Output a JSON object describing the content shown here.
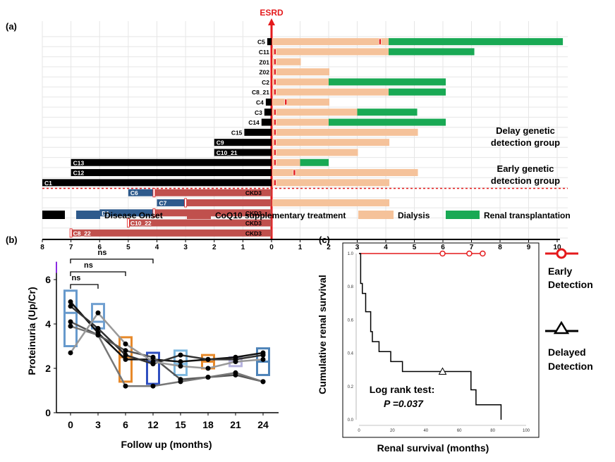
{
  "colors": {
    "onset": "#000000",
    "disease_onset": "#2e5a8c",
    "coq10": "#c0504d",
    "dialysis": "#f5c29a",
    "transplant": "#19a954",
    "esrd": "#e41a1c",
    "boxes": [
      "#6699cc",
      "#6f9fd0",
      "#e7892a",
      "#2f4fc0",
      "#7fb9e0",
      "#e7892a",
      "#b7b4e0",
      "#4d83b8"
    ],
    "early_curve": "#e41a1c",
    "delayed_curve": "#000000"
  },
  "panel_labels": {
    "a": "(a)",
    "b": "(b)",
    "c": "(c)"
  },
  "chart_data": [
    {
      "type": "bar",
      "subtype": "swimmer-plot",
      "panel": "(a)",
      "reference_line": {
        "label": "ESRD",
        "x": 0
      },
      "x_ticks_left": [
        "8",
        "7",
        "6",
        "5",
        "4",
        "3",
        "2",
        "1",
        "0"
      ],
      "x_ticks_right": [
        "1",
        "2",
        "3",
        "4",
        "5",
        "6",
        "7",
        "8",
        "9",
        "10"
      ],
      "group_labels": [
        {
          "lines": [
            "Delay genetic",
            "detection group"
          ]
        },
        {
          "lines": [
            "Early genetic",
            "detection group"
          ]
        }
      ],
      "legend": [
        {
          "key": "onset",
          "label": ""
        },
        {
          "key": "disease_onset",
          "label": "Disease Onset"
        },
        {
          "key": "coq10",
          "label": "CoQ10 supplementary treatment"
        },
        {
          "key": "dialysis",
          "label": "Dialysis"
        },
        {
          "key": "transplant",
          "label": "Renal transplantation"
        }
      ],
      "delay_patients": [
        {
          "id": "C5",
          "onset": 0.15,
          "dialysis_end": 4.1,
          "mark": 3.8,
          "transplant_end": 10.2
        },
        {
          "id": "C11",
          "onset": 0,
          "dialysis_end": 4.1,
          "mark": 0.12,
          "transplant_end": 7.1
        },
        {
          "id": "Z01",
          "onset": 0,
          "dialysis_end": 1.0,
          "mark": 0.12
        },
        {
          "id": "Z02",
          "onset": 0,
          "dialysis_end": 2.0,
          "mark": 0.12
        },
        {
          "id": "C2",
          "onset": 0,
          "dialysis_end": 2.0,
          "mark": 0.12,
          "transplant_end": 6.1
        },
        {
          "id": "C8_21",
          "onset": 0,
          "dialysis_end": 4.1,
          "mark": 0.12,
          "transplant_end": 6.1
        },
        {
          "id": "C4",
          "onset": 0.2,
          "dialysis_end": 2.0,
          "mark": 0.5
        },
        {
          "id": "C3",
          "onset": 0.25,
          "dialysis_end": 3.0,
          "mark": 0.12,
          "transplant_end": 5.1
        },
        {
          "id": "C14",
          "onset": 0.35,
          "dialysis_end": 2.0,
          "mark": 0.12,
          "transplant_end": 6.1
        },
        {
          "id": "C15",
          "onset": 0.95,
          "dialysis_end": 5.1,
          "mark": 0.12
        },
        {
          "id": "C9",
          "onset": 2.0,
          "dialysis_end": 4.1,
          "mark": 0.12
        },
        {
          "id": "C10_21",
          "onset": 2.0,
          "dialysis_end": 3.0,
          "mark": 0.12
        },
        {
          "id": "C13",
          "onset": 7.0,
          "dialysis_end": 1.0,
          "mark": 0.12,
          "transplant_end": 2.0
        },
        {
          "id": "C12",
          "onset": 7.0,
          "dialysis_end": 5.1,
          "mark": 0.8
        },
        {
          "id": "C1",
          "onset": 8.0,
          "dialysis_end": 4.1,
          "mark": 0.12
        }
      ],
      "early_patients": [
        {
          "id": "C6",
          "onset": 5.0,
          "coq10_start": 4.1,
          "mark": 4.1,
          "status": "CKD3"
        },
        {
          "id": "C7",
          "onset": 4.0,
          "coq10_start": 3.0,
          "mark": 3.0,
          "status": "",
          "dialysis_end": 4.1
        },
        {
          "id": "D1",
          "onset": 6.0,
          "coq10_start": 4.1,
          "mark": 4.1,
          "status": "CKD3"
        },
        {
          "id": "C10_22",
          "onset": 5.0,
          "coq10_start": 5.0,
          "mark": 5.0,
          "status": "CKD3"
        },
        {
          "id": "C8_22",
          "onset": 7.0,
          "coq10_start": 7.0,
          "mark": 7.0,
          "status": "CKD3"
        }
      ]
    },
    {
      "type": "line",
      "subtype": "box-with-paired-lines",
      "panel": "(b)",
      "xlabel": "Follow up (months)",
      "ylabel": "Proteinuria (Up/Cr)",
      "categories": [
        "0",
        "3",
        "6",
        "12",
        "15",
        "18",
        "21",
        "24"
      ],
      "y_ticks": [
        "0",
        "2",
        "4",
        "6"
      ],
      "ylim": [
        0,
        6.8
      ],
      "boxes": [
        {
          "q1": 3.0,
          "median": 4.5,
          "q3": 5.5
        },
        {
          "q1": 3.8,
          "median": 4.1,
          "q3": 4.9
        },
        {
          "q1": 1.4,
          "median": 2.5,
          "q3": 3.4
        },
        {
          "q1": 1.3,
          "median": 2.3,
          "q3": 2.7
        },
        {
          "q1": 1.7,
          "median": 2.2,
          "q3": 2.8
        },
        {
          "q1": 2.0,
          "median": 2.3,
          "q3": 2.6
        },
        {
          "q1": 2.1,
          "median": 2.3,
          "q3": 2.5
        },
        {
          "q1": 1.7,
          "median": 2.3,
          "q3": 2.9
        }
      ],
      "series": [
        {
          "values": [
            5.0,
            3.6,
            2.4,
            2.4,
            2.3,
            2.4,
            2.5,
            2.7
          ],
          "color": "#111111"
        },
        {
          "values": [
            4.8,
            3.8,
            2.6,
            2.2,
            2.6,
            2.4,
            2.4,
            2.6
          ],
          "color": "#333333"
        },
        {
          "values": [
            4.1,
            3.5,
            2.8,
            2.5,
            1.5,
            1.6,
            1.7,
            1.4
          ],
          "color": "#555555"
        },
        {
          "values": [
            3.9,
            3.5,
            1.2,
            1.2,
            1.4,
            1.6,
            1.8,
            1.4
          ],
          "color": "#777777"
        },
        {
          "values": [
            2.7,
            4.5,
            3.1,
            2.3,
            2.1,
            2.0,
            2.3,
            2.4
          ],
          "color": "#999999"
        }
      ],
      "comparisons": [
        {
          "from": "0",
          "to": "3",
          "label": "ns"
        },
        {
          "from": "0",
          "to": "6",
          "label": "ns"
        },
        {
          "from": "0",
          "to": "12",
          "label": "ns"
        }
      ]
    },
    {
      "type": "line",
      "subtype": "kaplan-meier",
      "panel": "(c)",
      "xlabel": "Renal survival (months)",
      "ylabel": "Cumulative  renal survival",
      "xlim": [
        0,
        100
      ],
      "ylim": [
        0,
        1.0
      ],
      "x_ticks": [
        "0",
        "20",
        "40",
        "60",
        "80",
        "100"
      ],
      "y_ticks": [
        "0.0",
        "0.2",
        "0.4",
        "0.6",
        "0.8",
        "1.0"
      ],
      "annotation": {
        "line1": "Log rank test:",
        "line2": "P =0.037"
      },
      "series": [
        {
          "name": "Early Detection",
          "label_lines": [
            "Early",
            "Detection"
          ],
          "marker": "circle",
          "steps": [
            [
              0,
              1.0
            ],
            [
              74,
              1.0
            ]
          ],
          "censored": [
            [
              50,
              1.0
            ],
            [
              66,
              1.0
            ],
            [
              74,
              1.0
            ]
          ]
        },
        {
          "name": "Delayed Detection",
          "label_lines": [
            "Delayed",
            "Detection"
          ],
          "marker": "triangle",
          "steps": [
            [
              0,
              1.0
            ],
            [
              1,
              0.82
            ],
            [
              2,
              0.76
            ],
            [
              4,
              0.65
            ],
            [
              7,
              0.53
            ],
            [
              8,
              0.47
            ],
            [
              12,
              0.41
            ],
            [
              19,
              0.35
            ],
            [
              26,
              0.29
            ],
            [
              67,
              0.18
            ],
            [
              70,
              0.09
            ],
            [
              85,
              0.0
            ]
          ],
          "censored": [
            [
              50,
              0.29
            ]
          ]
        }
      ]
    }
  ]
}
